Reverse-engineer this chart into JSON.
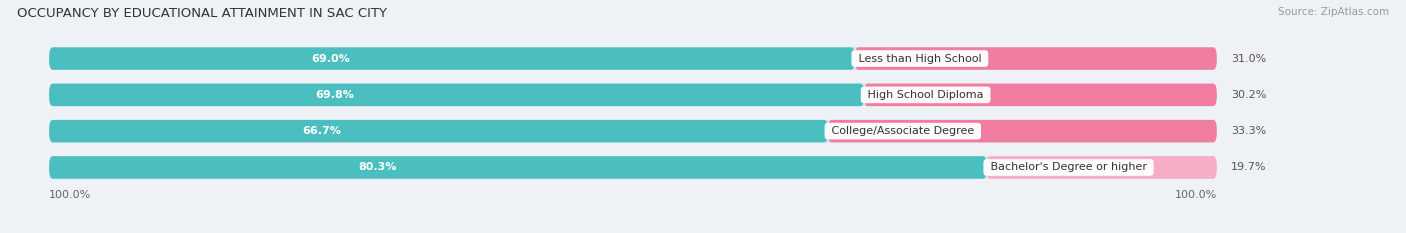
{
  "title": "OCCUPANCY BY EDUCATIONAL ATTAINMENT IN SAC CITY",
  "source": "Source: ZipAtlas.com",
  "categories": [
    "Less than High School",
    "High School Diploma",
    "College/Associate Degree",
    "Bachelor's Degree or higher"
  ],
  "owner_values": [
    69.0,
    69.8,
    66.7,
    80.3
  ],
  "renter_values": [
    31.0,
    30.2,
    33.3,
    19.7
  ],
  "owner_color": "#4bbfc0",
  "renter_colors": [
    "#f07ca0",
    "#f07ca0",
    "#f07ca0",
    "#f5adc8"
  ],
  "bar_height": 0.62,
  "background_color": "#eef1f5",
  "bar_background": "#dde2ea",
  "title_fontsize": 9.5,
  "label_fontsize": 8,
  "value_fontsize": 8,
  "tick_fontsize": 8,
  "legend_fontsize": 8,
  "source_fontsize": 7.5,
  "total_width": 100.0,
  "x_left_label": "100.0%",
  "x_right_label": "100.0%"
}
